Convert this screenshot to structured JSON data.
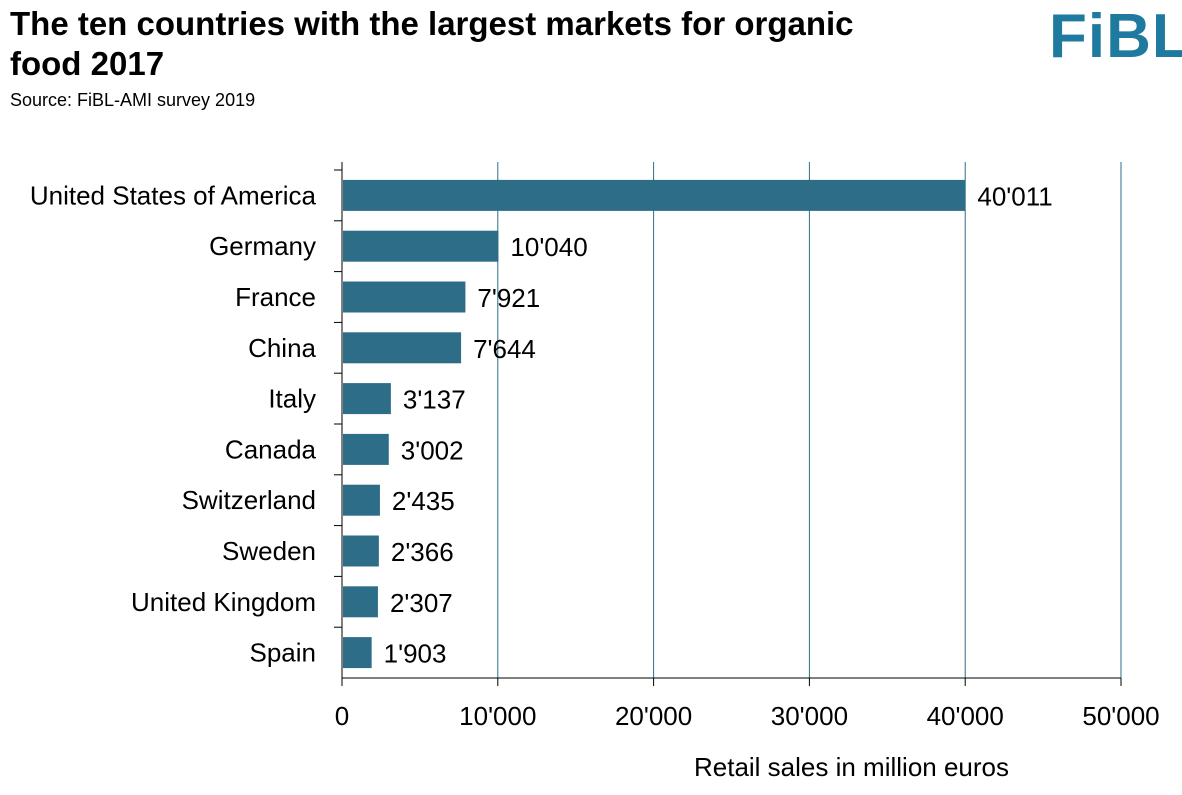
{
  "title": "The ten countries with the largest markets for organic food  2017",
  "subtitle": "Source: FiBL-AMI survey 2019",
  "logo": "FiBL",
  "colors": {
    "bar": "#2e6d87",
    "grid": "#2e6d87",
    "axis": "#000000"
  },
  "chart_data": {
    "type": "bar",
    "orientation": "horizontal",
    "categories": [
      "United States of America",
      "Germany",
      "France",
      "China",
      "Italy",
      "Canada",
      "Switzerland",
      "Sweden",
      "United Kingdom",
      "Spain"
    ],
    "values": [
      40011,
      10040,
      7921,
      7644,
      3137,
      3002,
      2435,
      2366,
      2307,
      1903
    ],
    "value_labels": [
      "40'011",
      "10'040",
      "7'921",
      "7'644",
      "3'137",
      "3'002",
      "2'435",
      "2'366",
      "2'307",
      "1'903"
    ],
    "xlabel": "Retail sales in million euros",
    "ylabel": "",
    "xlim": [
      0,
      50000
    ],
    "ticks": [
      0,
      10000,
      20000,
      30000,
      40000,
      50000
    ],
    "tick_labels": [
      "0",
      "10'000",
      "20'000",
      "30'000",
      "40'000",
      "50'000"
    ],
    "grid": true
  }
}
